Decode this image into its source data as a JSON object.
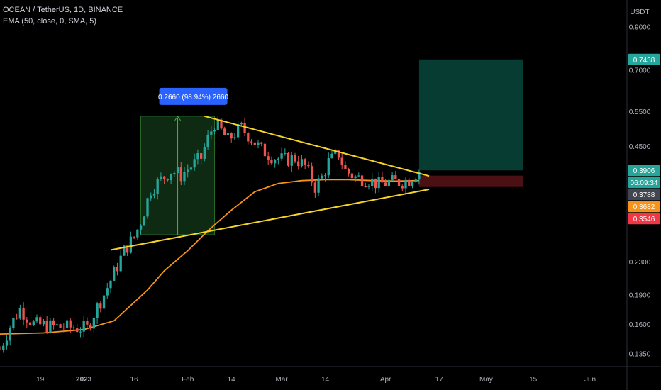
{
  "header": {
    "symbol_line": "OCEAN / TetherUS, 1D, BINANCE",
    "indicator_line": "EMA (50, close, 0, SMA, 5)"
  },
  "colors": {
    "background": "#000000",
    "candle_up": "#26a69a",
    "candle_down": "#ef5350",
    "ema": "#f7931a",
    "trendline": "#f5d327",
    "target_zone": "#073c33",
    "stop_zone": "#4a1014",
    "measure_zone": "#0f2a12",
    "measure_label": "#2962ff",
    "axis_text": "#b2b5be",
    "axis_line": "#2a2e39"
  },
  "chart_data": {
    "type": "candlestick",
    "y_axis_unit": "USDT",
    "y_scale": "log",
    "y_range": [
      0.125,
      1.05
    ],
    "x_range": [
      "2022-12-07",
      "2023-06-12"
    ],
    "y_ticks": [
      "0.9000",
      "0.7000",
      "0.5500",
      "0.4500",
      "0.2300",
      "0.1900",
      "0.1600",
      "0.1350"
    ],
    "x_ticks": [
      {
        "date": "2022-12-19",
        "label": "19"
      },
      {
        "date": "2023-01-01",
        "label": "2023"
      },
      {
        "date": "2023-01-16",
        "label": "16"
      },
      {
        "date": "2023-02-01",
        "label": "Feb"
      },
      {
        "date": "2023-02-14",
        "label": "14"
      },
      {
        "date": "2023-03-01",
        "label": "Mar"
      },
      {
        "date": "2023-03-14",
        "label": "14"
      },
      {
        "date": "2023-04-01",
        "label": "Apr"
      },
      {
        "date": "2023-04-17",
        "label": "17"
      },
      {
        "date": "2023-05-01",
        "label": "May"
      },
      {
        "date": "2023-05-15",
        "label": "15"
      },
      {
        "date": "2023-06-01",
        "label": "Jun"
      }
    ],
    "price_tags": [
      {
        "label": "0.7438",
        "value": 0.7438,
        "color": "#26a69a"
      },
      {
        "label": "0.3906",
        "value": 0.3906,
        "color": "#26a69a"
      },
      {
        "label": "06:09:34",
        "value": 0.3906,
        "color": "#26a69a"
      },
      {
        "label": "0.3788",
        "value": 0.3788,
        "color": "#434651"
      },
      {
        "label": "0.3682",
        "value": 0.3682,
        "color": "#f7931a"
      },
      {
        "label": "0.3546",
        "value": 0.3546,
        "color": "#f23645"
      }
    ],
    "measure": {
      "label": "0.2660 (98.94%) 2660",
      "from_date": "2023-01-18",
      "to_date": "2023-02-09",
      "low": 0.2688,
      "high": 0.5348
    },
    "target_zone": {
      "from_date": "2023-04-11",
      "to_date": "2023-05-12",
      "low": 0.3906,
      "high": 0.7438
    },
    "stop_zone": {
      "from_date": "2023-04-11",
      "to_date": "2023-05-12",
      "low": 0.3546,
      "high": 0.3788
    },
    "trendlines": [
      {
        "name": "upper",
        "points": [
          [
            "2023-02-06",
            0.535
          ],
          [
            "2023-04-14",
            0.378
          ]
        ]
      },
      {
        "name": "lower",
        "points": [
          [
            "2023-01-09",
            0.246
          ],
          [
            "2023-04-14",
            0.3498
          ]
        ]
      }
    ],
    "ema": [
      [
        "2022-12-07",
        0.151
      ],
      [
        "2022-12-20",
        0.152
      ],
      [
        "2023-01-01",
        0.155
      ],
      [
        "2023-01-10",
        0.163
      ],
      [
        "2023-01-20",
        0.195
      ],
      [
        "2023-01-25",
        0.218
      ],
      [
        "2023-02-01",
        0.245
      ],
      [
        "2023-02-07",
        0.275
      ],
      [
        "2023-02-14",
        0.31
      ],
      [
        "2023-02-21",
        0.345
      ],
      [
        "2023-02-28",
        0.362
      ],
      [
        "2023-03-07",
        0.368
      ],
      [
        "2023-03-14",
        0.37
      ],
      [
        "2023-03-21",
        0.37
      ],
      [
        "2023-03-28",
        0.368
      ],
      [
        "2023-04-04",
        0.367
      ],
      [
        "2023-04-11",
        0.3682
      ]
    ],
    "close_path": [
      [
        "2022-12-07",
        0.138
      ],
      [
        "2022-12-10",
        0.158
      ],
      [
        "2022-12-13",
        0.175
      ],
      [
        "2022-12-17",
        0.16
      ],
      [
        "2022-12-22",
        0.158
      ],
      [
        "2022-12-28",
        0.157
      ],
      [
        "2023-01-02",
        0.156
      ],
      [
        "2023-01-04",
        0.17
      ],
      [
        "2023-01-07",
        0.19
      ],
      [
        "2023-01-10",
        0.215
      ],
      [
        "2023-01-13",
        0.245
      ],
      [
        "2023-01-16",
        0.265
      ],
      [
        "2023-01-18",
        0.29
      ],
      [
        "2023-01-21",
        0.35
      ],
      [
        "2023-01-24",
        0.37
      ],
      [
        "2023-01-27",
        0.39
      ],
      [
        "2023-01-30",
        0.38
      ],
      [
        "2023-02-02",
        0.4
      ],
      [
        "2023-02-05",
        0.42
      ],
      [
        "2023-02-07",
        0.47
      ],
      [
        "2023-02-09",
        0.515
      ],
      [
        "2023-02-11",
        0.49
      ],
      [
        "2023-02-13",
        0.465
      ],
      [
        "2023-02-15",
        0.485
      ],
      [
        "2023-02-17",
        0.5
      ],
      [
        "2023-02-20",
        0.47
      ],
      [
        "2023-02-23",
        0.44
      ],
      [
        "2023-02-27",
        0.42
      ],
      [
        "2023-03-02",
        0.415
      ],
      [
        "2023-03-05",
        0.42
      ],
      [
        "2023-03-08",
        0.4
      ],
      [
        "2023-03-11",
        0.355
      ],
      [
        "2023-03-13",
        0.375
      ],
      [
        "2023-03-15",
        0.41
      ],
      [
        "2023-03-18",
        0.43
      ],
      [
        "2023-03-20",
        0.39
      ],
      [
        "2023-03-23",
        0.375
      ],
      [
        "2023-03-27",
        0.37
      ],
      [
        "2023-03-30",
        0.36
      ],
      [
        "2023-04-02",
        0.365
      ],
      [
        "2023-04-05",
        0.365
      ],
      [
        "2023-04-08",
        0.37
      ],
      [
        "2023-04-11",
        0.3906
      ]
    ]
  }
}
